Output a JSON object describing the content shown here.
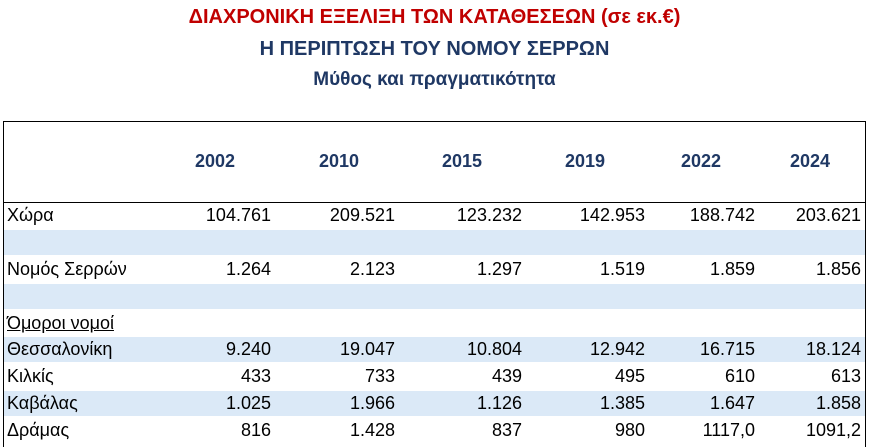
{
  "titles": {
    "line1": "ΔΙΑΧΡΟΝΙΚΗ ΕΞΕΛΙΞΗ ΤΩΝ ΚΑΤΑΘΕΣΕΩΝ (σε εκ.€)",
    "line2": "Η ΠΕΡΙΠΤΩΣΗ ΤΟΥ ΝΟΜΟΥ ΣΕΡΡΩΝ",
    "line3": "Μύθος και πραγματικότητα"
  },
  "table": {
    "years": [
      "2002",
      "2010",
      "2015",
      "2019",
      "2022",
      "2024"
    ],
    "rows": {
      "country": {
        "label": "Χώρα",
        "values": [
          "104.761",
          "209.521",
          "123.232",
          "142.953",
          "188.742",
          "203.621"
        ]
      },
      "serres": {
        "label": "Νομός Σερρών",
        "values": [
          "1.264",
          "2.123",
          "1.297",
          "1.519",
          "1.859",
          "1.856"
        ]
      },
      "neighbors_heading": {
        "label": "Όμοροι νομοί"
      },
      "thessaloniki": {
        "label": "Θεσσαλονίκη",
        "values": [
          "9.240",
          "19.047",
          "10.804",
          "12.942",
          "16.715",
          "18.124"
        ]
      },
      "kilkis": {
        "label": "Κιλκίς",
        "values": [
          "433",
          "733",
          "439",
          "495",
          "610",
          "613"
        ]
      },
      "kavala": {
        "label": "Καβάλας",
        "values": [
          "1.025",
          "1.966",
          "1.126",
          "1.385",
          "1.647",
          "1.858"
        ]
      },
      "drama": {
        "label": "Δράμας",
        "values": [
          "816",
          "1.428",
          "837",
          "980",
          "1117,0",
          "1091,2"
        ]
      }
    }
  },
  "colors": {
    "title_red": "#c00000",
    "title_navy": "#1f3864",
    "row_shade": "#dbe9f7"
  }
}
